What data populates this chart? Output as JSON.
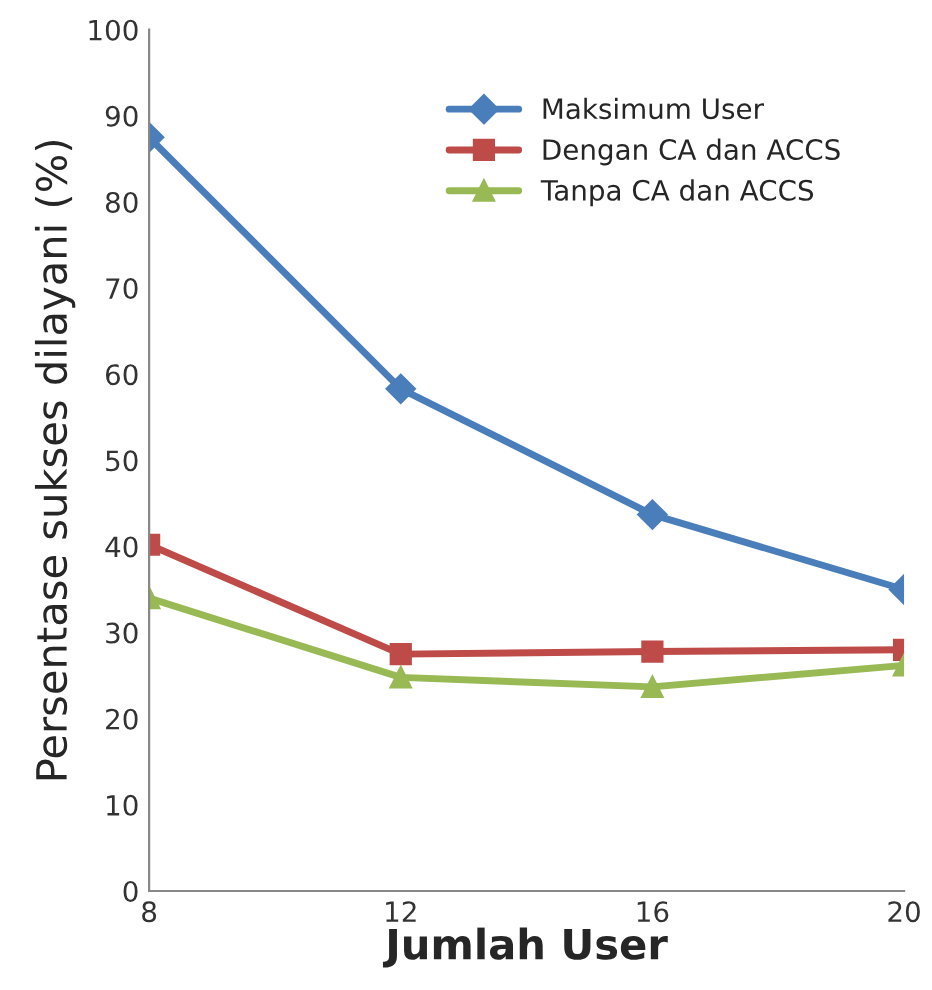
{
  "chart_data": {
    "type": "line",
    "xlabel": "Jumlah User",
    "ylabel": "Persentase sukses dilayani (%)",
    "x": [
      8,
      12,
      16,
      20
    ],
    "xlim": [
      8,
      20
    ],
    "xticks": [
      8,
      12,
      16,
      20
    ],
    "ylim": [
      0,
      100
    ],
    "yticks": [
      0,
      10,
      20,
      30,
      40,
      50,
      60,
      70,
      80,
      90,
      100
    ],
    "grid": false,
    "legend": "top right",
    "series": [
      {
        "name": "Maksimum User",
        "color": "#4a7ebb",
        "marker": "diamond",
        "values": [
          87.5,
          58.3,
          43.7,
          35.0
        ]
      },
      {
        "name": "Dengan CA dan ACCS",
        "color": "#be4b48",
        "marker": "square",
        "values": [
          40.2,
          27.5,
          27.8,
          28.0
        ]
      },
      {
        "name": "Tanpa CA dan ACCS",
        "color": "#98b954",
        "marker": "triangle",
        "values": [
          34.0,
          24.8,
          23.7,
          26.2
        ]
      }
    ]
  }
}
